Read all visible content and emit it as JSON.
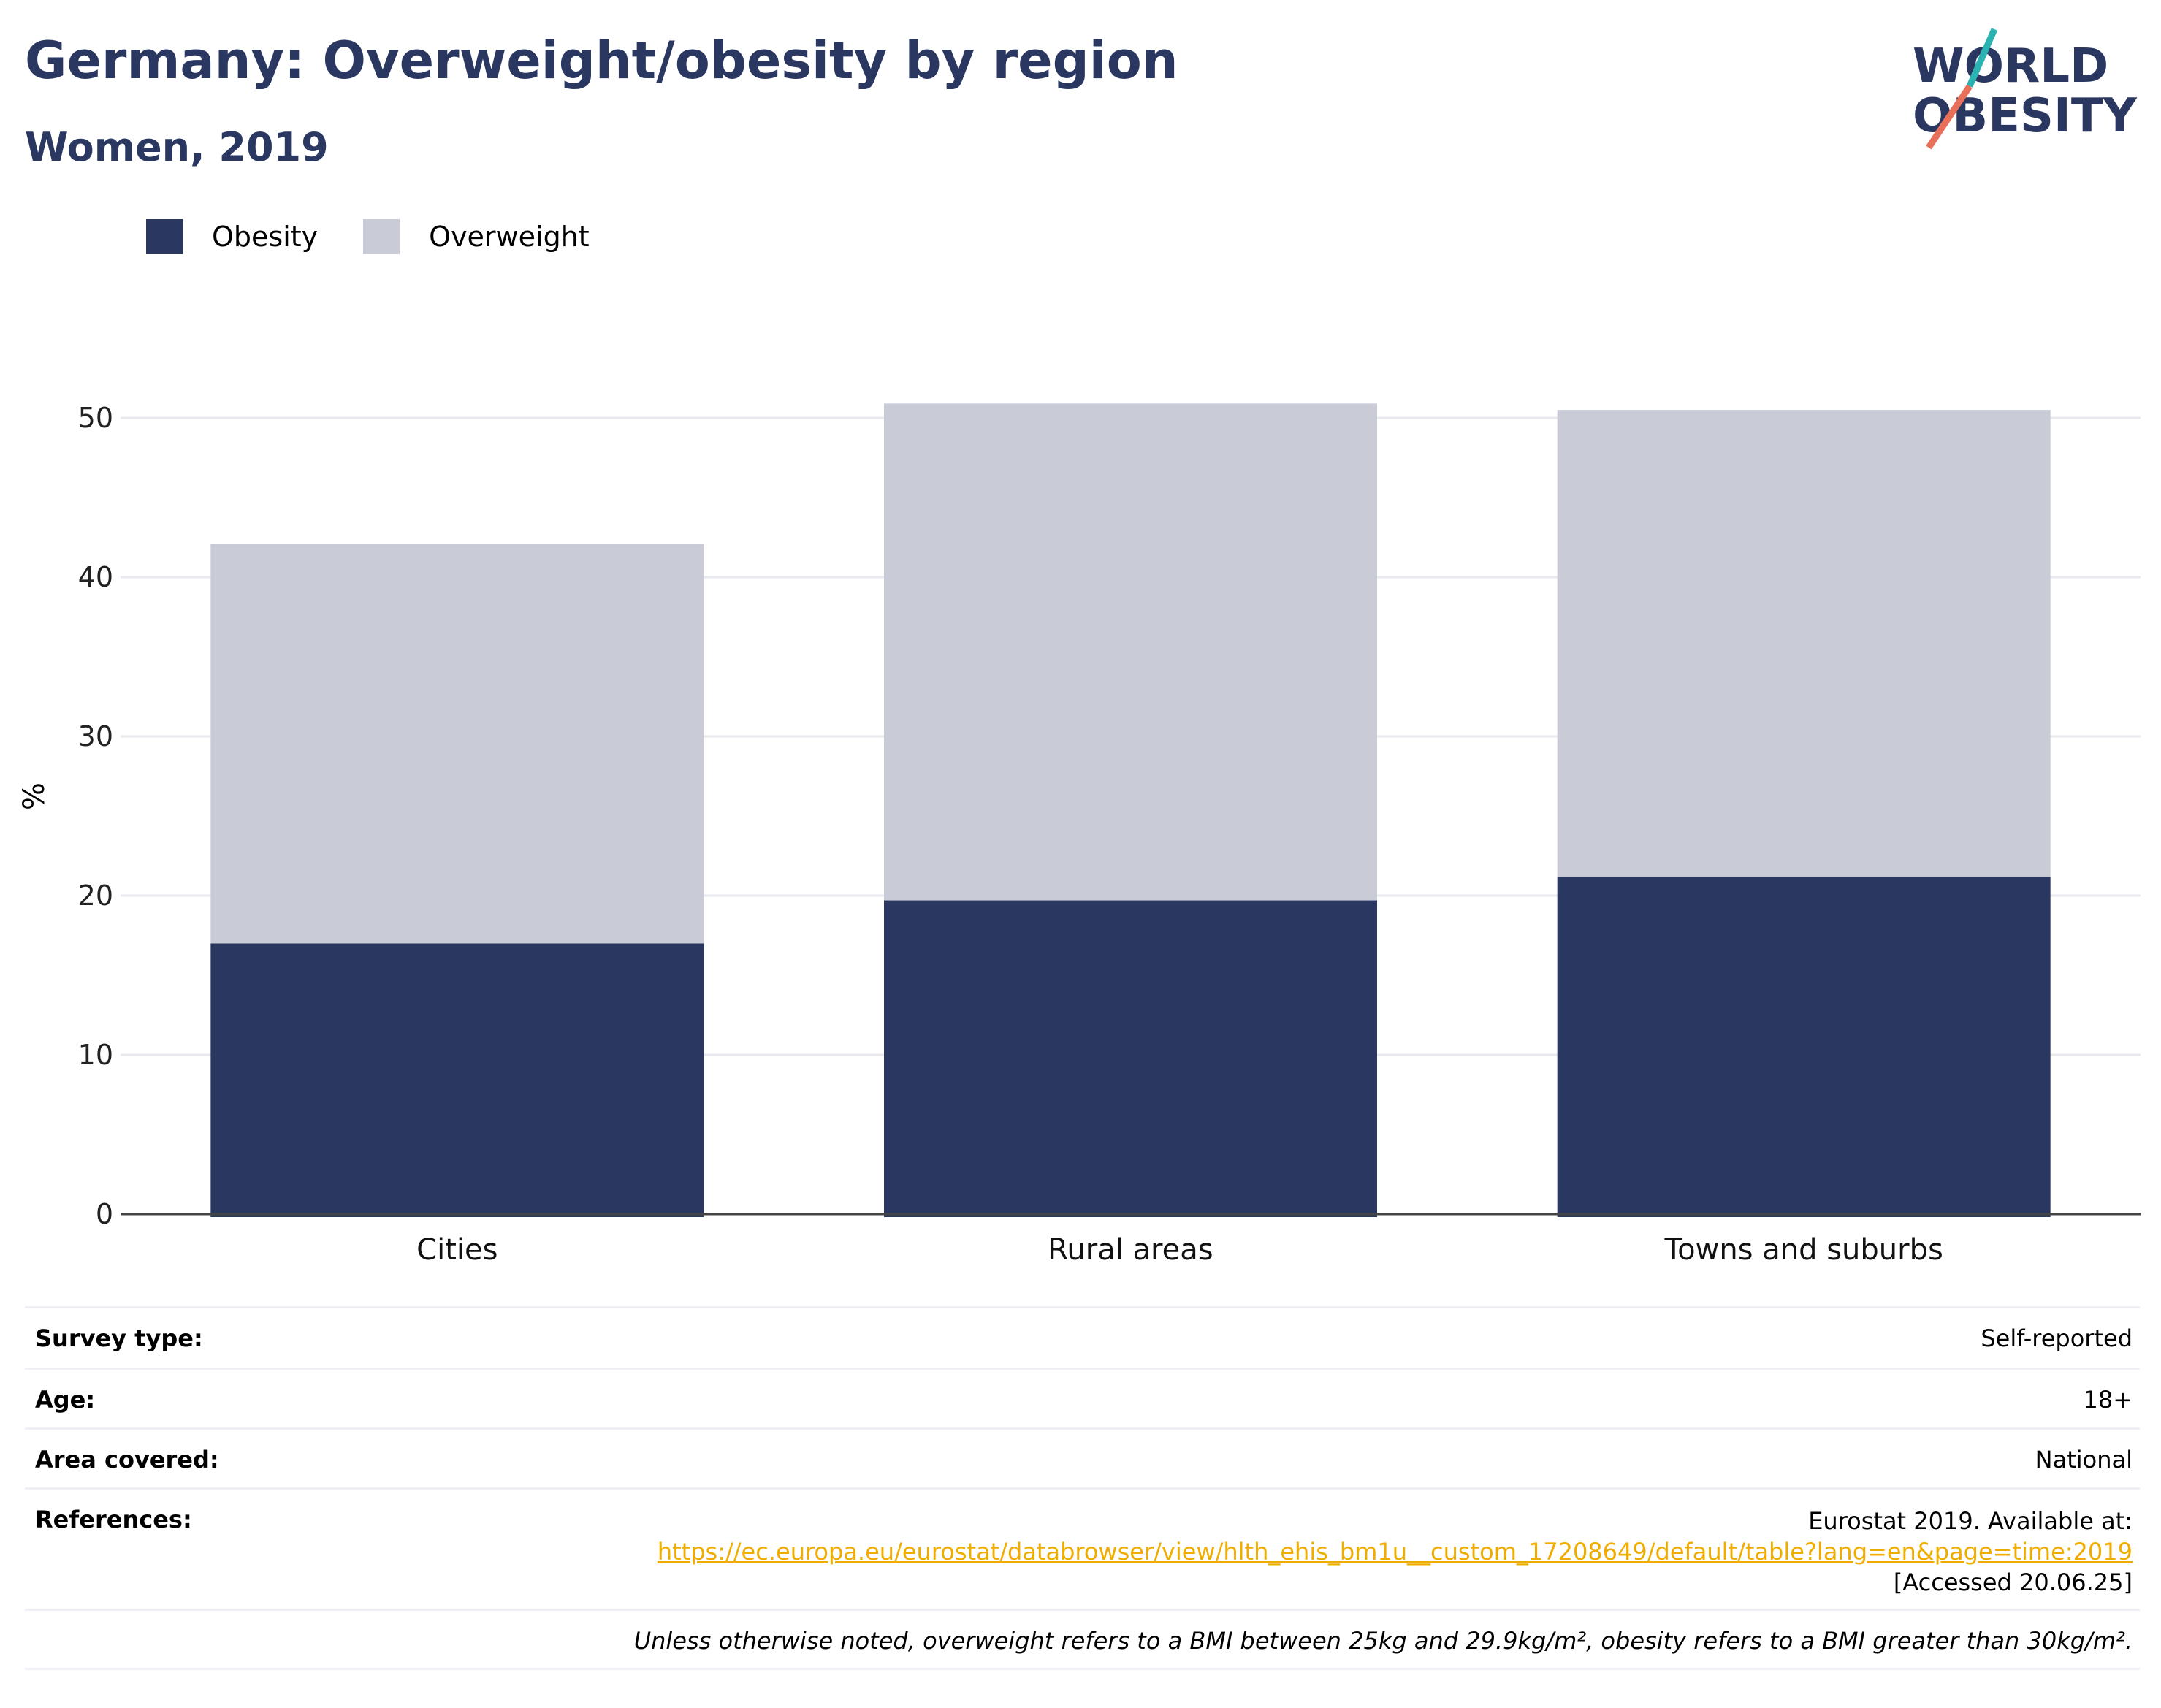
{
  "header": {
    "title": "Germany: Overweight/obesity by region",
    "subtitle": "Women, 2019"
  },
  "logo": {
    "line1": "WORLD",
    "line2": "OBESITY"
  },
  "colors": {
    "obesity": "#2a3761",
    "overweight": "#c9cbd6",
    "accent_teal": "#2bb3b1",
    "accent_coral": "#e8705a"
  },
  "chart_data": {
    "type": "bar",
    "stacked": true,
    "categories": [
      "Cities",
      "Rural areas",
      "Towns and suburbs"
    ],
    "series": [
      {
        "name": "Obesity",
        "values": [
          17.0,
          19.7,
          21.2
        ]
      },
      {
        "name": "Overweight",
        "values": [
          25.1,
          31.2,
          29.3
        ]
      }
    ],
    "ylabel": "%",
    "yticks": [
      0,
      10,
      20,
      30,
      40,
      50
    ],
    "ylim": [
      0,
      55
    ],
    "grid": true,
    "legend_position": "top-left"
  },
  "metadata": {
    "rows": [
      {
        "key": "Survey type:",
        "value": "Self-reported"
      },
      {
        "key": "Age:",
        "value": "18+"
      },
      {
        "key": "Area covered:",
        "value": "National"
      }
    ],
    "references": {
      "key": "References:",
      "line1": "Eurostat 2019. Available at:",
      "link": "https://ec.europa.eu/eurostat/databrowser/view/hlth_ehis_bm1u__custom_17208649/default/table?lang=en&page=time:2019",
      "line3": "[Accessed 20.06.25]"
    },
    "note": "Unless otherwise noted, overweight refers to a BMI between 25kg and 29.9kg/m², obesity refers to a BMI greater than 30kg/m²."
  }
}
